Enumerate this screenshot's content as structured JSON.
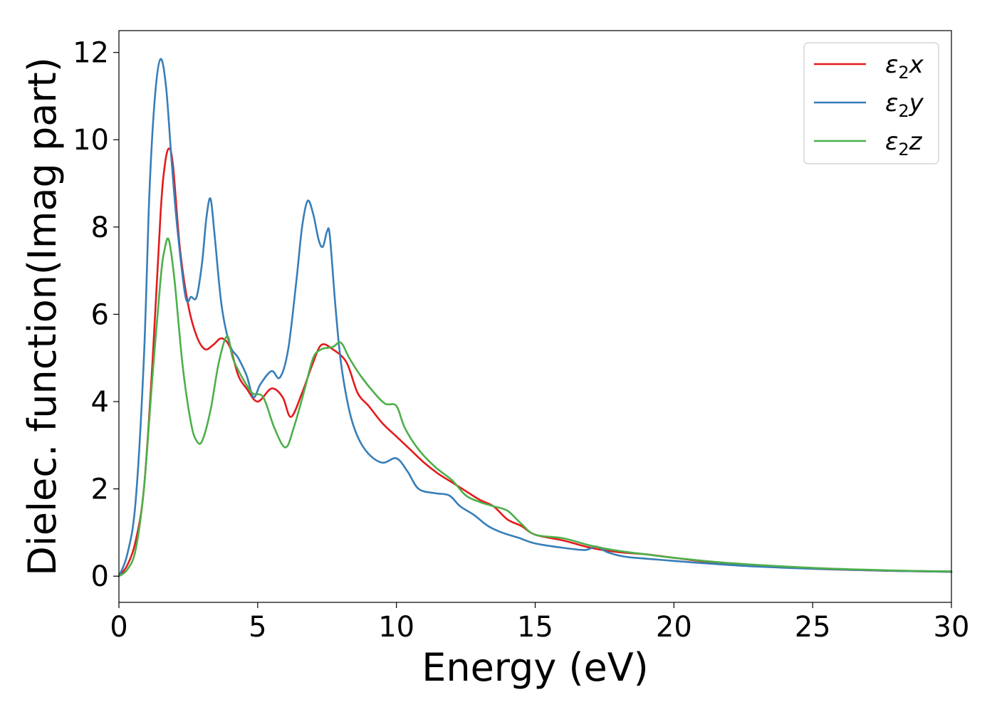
{
  "chart_data": {
    "type": "line",
    "title": "",
    "xlabel": "Energy (eV)",
    "ylabel": "Dielec. function(Imag part)",
    "xlim": [
      0,
      30
    ],
    "ylim": [
      -0.6,
      12.5
    ],
    "xticks": [
      0,
      5,
      10,
      15,
      20,
      25,
      30
    ],
    "yticks": [
      0,
      2,
      4,
      6,
      8,
      10,
      12
    ],
    "xtick_labels": [
      "0",
      "5",
      "10",
      "15",
      "20",
      "25",
      "30"
    ],
    "ytick_labels": [
      "0",
      "2",
      "4",
      "6",
      "8",
      "10",
      "12"
    ],
    "grid": false,
    "legend_position": "top-right",
    "series": [
      {
        "name": "ε₂x",
        "legend_base": "ε",
        "legend_sub": "2",
        "legend_tail": "x",
        "color": "#e41a1c",
        "x": [
          0,
          0.3,
          0.6,
          0.9,
          1.2,
          1.5,
          1.65,
          1.8,
          1.95,
          2.2,
          2.5,
          2.8,
          3.1,
          3.4,
          3.7,
          4.0,
          4.3,
          4.6,
          5.0,
          5.5,
          5.9,
          6.2,
          6.6,
          7.0,
          7.3,
          7.7,
          8.2,
          8.6,
          9.0,
          9.5,
          10.0,
          10.5,
          11.0,
          11.5,
          12.0,
          12.5,
          13.0,
          13.5,
          14.0,
          14.5,
          15.0,
          16.0,
          17.0,
          18.0,
          19.0,
          20.0,
          22.0,
          25.0,
          28.0,
          30.0
        ],
        "y": [
          0.0,
          0.25,
          0.8,
          2.0,
          4.8,
          8.3,
          9.4,
          9.8,
          9.4,
          7.5,
          6.2,
          5.5,
          5.2,
          5.3,
          5.45,
          5.25,
          4.6,
          4.3,
          4.0,
          4.3,
          4.1,
          3.65,
          4.2,
          4.9,
          5.3,
          5.2,
          4.9,
          4.2,
          3.9,
          3.5,
          3.2,
          2.9,
          2.6,
          2.35,
          2.15,
          1.95,
          1.75,
          1.6,
          1.3,
          1.15,
          0.95,
          0.82,
          0.65,
          0.55,
          0.5,
          0.42,
          0.28,
          0.17,
          0.12,
          0.1
        ]
      },
      {
        "name": "ε₂y",
        "legend_base": "ε",
        "legend_sub": "2",
        "legend_tail": "y",
        "color": "#377eb8",
        "x": [
          0,
          0.3,
          0.6,
          0.9,
          1.1,
          1.3,
          1.5,
          1.7,
          1.9,
          2.1,
          2.4,
          2.6,
          2.8,
          3.0,
          3.15,
          3.3,
          3.45,
          3.7,
          4.0,
          4.3,
          4.6,
          4.85,
          5.1,
          5.5,
          5.8,
          6.1,
          6.4,
          6.6,
          6.8,
          7.0,
          7.2,
          7.35,
          7.5,
          7.6,
          7.8,
          8.0,
          8.3,
          8.6,
          9.0,
          9.5,
          10.0,
          10.4,
          10.8,
          11.4,
          11.9,
          12.3,
          12.8,
          13.3,
          13.8,
          14.4,
          15.0,
          16.0,
          16.8,
          17.2,
          17.6,
          18.2,
          19.0,
          20.0,
          21.0,
          23.0,
          25.0,
          28.0,
          30.0
        ],
        "y": [
          0.0,
          0.5,
          1.7,
          5.0,
          8.8,
          11.0,
          11.85,
          11.2,
          9.5,
          8.0,
          6.4,
          6.4,
          6.4,
          7.2,
          8.2,
          8.65,
          7.8,
          6.2,
          5.3,
          5.0,
          4.6,
          4.1,
          4.4,
          4.7,
          4.55,
          5.2,
          6.8,
          8.0,
          8.6,
          8.3,
          7.7,
          7.55,
          7.9,
          7.8,
          6.2,
          4.9,
          3.8,
          3.2,
          2.8,
          2.6,
          2.7,
          2.4,
          2.0,
          1.9,
          1.85,
          1.6,
          1.4,
          1.15,
          1.0,
          0.88,
          0.75,
          0.65,
          0.6,
          0.68,
          0.55,
          0.45,
          0.4,
          0.35,
          0.3,
          0.22,
          0.17,
          0.12,
          0.1
        ]
      },
      {
        "name": "ε₂z",
        "legend_base": "ε",
        "legend_sub": "2",
        "legend_tail": "z",
        "color": "#4daf4a",
        "x": [
          0,
          0.3,
          0.6,
          0.9,
          1.2,
          1.5,
          1.65,
          1.8,
          2.0,
          2.3,
          2.6,
          2.8,
          3.0,
          3.3,
          3.6,
          3.9,
          4.1,
          4.4,
          4.8,
          5.2,
          5.6,
          6.0,
          6.3,
          6.7,
          7.0,
          7.3,
          7.7,
          8.0,
          8.3,
          8.7,
          9.2,
          9.6,
          10.0,
          10.3,
          10.8,
          11.4,
          12.0,
          12.5,
          13.0,
          13.5,
          14.0,
          14.5,
          15.0,
          16.0,
          17.0,
          18.0,
          19.0,
          20.0,
          22.0,
          25.0,
          28.0,
          30.0
        ],
        "y": [
          0.0,
          0.15,
          0.6,
          2.0,
          4.5,
          6.8,
          7.5,
          7.7,
          6.8,
          4.8,
          3.5,
          3.1,
          3.1,
          3.8,
          4.9,
          5.5,
          5.0,
          4.6,
          4.2,
          4.1,
          3.4,
          2.95,
          3.4,
          4.3,
          5.0,
          5.2,
          5.25,
          5.35,
          5.0,
          4.6,
          4.2,
          3.95,
          3.9,
          3.4,
          2.9,
          2.5,
          2.2,
          1.85,
          1.7,
          1.6,
          1.5,
          1.2,
          0.95,
          0.87,
          0.7,
          0.58,
          0.5,
          0.42,
          0.3,
          0.19,
          0.13,
          0.11
        ]
      }
    ]
  }
}
